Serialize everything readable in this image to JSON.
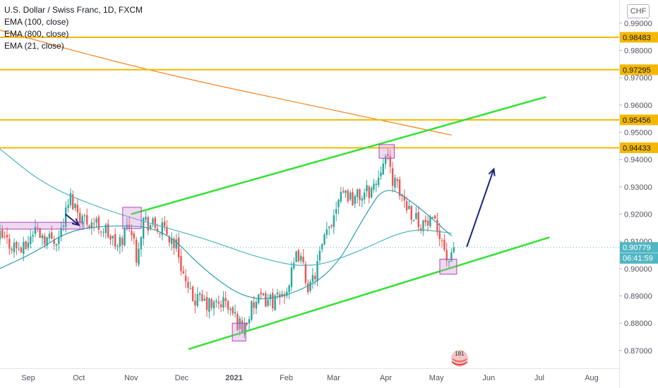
{
  "legend": {
    "title": "U.S. Dollar / Swiss Franc, 1D, FXCM",
    "ema100": "EMA (100, close)",
    "ema800": "EMA (800, close)",
    "ema21": "EMA (21, close)"
  },
  "currency_button": "CHF",
  "watermark_text": "181",
  "colors": {
    "up": "#26a69a",
    "down": "#ef5350",
    "ema100": "#4fb6c3",
    "ema21": "#2a9fb1",
    "ema800": "#f57f17",
    "level": "#f5b800",
    "channel": "#33e233",
    "arrow": "#1a237e",
    "box": "#ce93d8",
    "price_label": "#4fb6c3"
  },
  "chart_data": {
    "type": "candlestick",
    "symbol": "U.S. Dollar / Swiss Franc",
    "interval": "1D",
    "source": "FXCM",
    "ylim": [
      0.8635,
      0.9985
    ],
    "y_ticks": [
      "0.87000",
      "0.88000",
      "0.89000",
      "0.90000",
      "0.91000",
      "0.92000",
      "0.93000",
      "0.94000",
      "0.95000",
      "0.96000",
      "0.97000",
      "0.98000",
      "0.99000"
    ],
    "x_ticks": [
      {
        "label": "Sep",
        "date": "2020-09-01"
      },
      {
        "label": "Oct",
        "date": "2020-10-01"
      },
      {
        "label": "Nov",
        "date": "2020-11-01"
      },
      {
        "label": "Dec",
        "date": "2020-12-01"
      },
      {
        "label": "2021",
        "date": "2021-01-01"
      },
      {
        "label": "Feb",
        "date": "2021-02-01"
      },
      {
        "label": "Mar",
        "date": "2021-03-01"
      },
      {
        "label": "Apr",
        "date": "2021-04-01"
      },
      {
        "label": "May",
        "date": "2021-05-01"
      },
      {
        "label": "Jun",
        "date": "2021-06-01"
      },
      {
        "label": "Jul",
        "date": "2021-07-01"
      },
      {
        "label": "Aug",
        "date": "2021-08-01"
      }
    ],
    "horizontal_levels": [
      {
        "value": 0.98483,
        "label": "0.98483"
      },
      {
        "value": 0.97295,
        "label": "0.97295"
      },
      {
        "value": 0.95456,
        "label": "0.95456"
      },
      {
        "value": 0.94433,
        "label": "0.94433"
      }
    ],
    "last_price": {
      "value": 0.90779,
      "label": "0.90779",
      "countdown": "06:41:59"
    },
    "price_path": [
      [
        "2020-08-15",
        0.9115
      ],
      [
        "2020-08-22",
        0.909
      ],
      [
        "2020-08-29",
        0.9065
      ],
      [
        "2020-09-05",
        0.915
      ],
      [
        "2020-09-12",
        0.911
      ],
      [
        "2020-09-19",
        0.9115
      ],
      [
        "2020-09-26",
        0.926
      ],
      [
        "2020-10-03",
        0.9185
      ],
      [
        "2020-10-10",
        0.917
      ],
      [
        "2020-10-17",
        0.914
      ],
      [
        "2020-10-24",
        0.9075
      ],
      [
        "2020-10-31",
        0.9175
      ],
      [
        "2020-11-04",
        0.905
      ],
      [
        "2020-11-08",
        0.918
      ],
      [
        "2020-11-14",
        0.9155
      ],
      [
        "2020-11-21",
        0.9135
      ],
      [
        "2020-11-28",
        0.9085
      ],
      [
        "2020-12-05",
        0.89
      ],
      [
        "2020-12-12",
        0.888
      ],
      [
        "2020-12-19",
        0.886
      ],
      [
        "2020-12-26",
        0.888
      ],
      [
        "2021-01-06",
        0.878
      ],
      [
        "2021-01-13",
        0.887
      ],
      [
        "2021-01-20",
        0.889
      ],
      [
        "2021-01-27",
        0.888
      ],
      [
        "2021-02-03",
        0.895
      ],
      [
        "2021-02-08",
        0.906
      ],
      [
        "2021-02-15",
        0.892
      ],
      [
        "2021-02-22",
        0.907
      ],
      [
        "2021-03-01",
        0.92
      ],
      [
        "2021-03-05",
        0.93
      ],
      [
        "2021-03-12",
        0.926
      ],
      [
        "2021-03-19",
        0.927
      ],
      [
        "2021-03-26",
        0.931
      ],
      [
        "2021-03-31",
        0.9425
      ],
      [
        "2021-04-07",
        0.93
      ],
      [
        "2021-04-14",
        0.923
      ],
      [
        "2021-04-21",
        0.917
      ],
      [
        "2021-04-28",
        0.916
      ],
      [
        "2021-05-03",
        0.914
      ],
      [
        "2021-05-07",
        0.904
      ],
      [
        "2021-05-10",
        0.903
      ],
      [
        "2021-05-12",
        0.90779
      ]
    ],
    "ema_800": [
      [
        "2020-08-15",
        0.9875
      ],
      [
        "2020-10-15",
        0.977
      ],
      [
        "2020-12-15",
        0.968
      ],
      [
        "2021-02-15",
        0.96
      ],
      [
        "2021-04-01",
        0.954
      ],
      [
        "2021-05-10",
        0.949
      ]
    ],
    "ema_100": [
      [
        "2020-08-15",
        0.944
      ],
      [
        "2020-09-10",
        0.931
      ],
      [
        "2020-10-10",
        0.923
      ],
      [
        "2020-11-10",
        0.917
      ],
      [
        "2020-12-15",
        0.911
      ],
      [
        "2021-01-15",
        0.904
      ],
      [
        "2021-02-15",
        0.9
      ],
      [
        "2021-03-15",
        0.906
      ],
      [
        "2021-04-15",
        0.915
      ],
      [
        "2021-05-10",
        0.913
      ]
    ],
    "ema_21": [
      [
        "2020-08-15",
        0.9
      ],
      [
        "2020-09-05",
        0.906
      ],
      [
        "2020-09-25",
        0.914
      ],
      [
        "2020-10-20",
        0.916
      ],
      [
        "2020-11-20",
        0.915
      ],
      [
        "2020-12-15",
        0.899
      ],
      [
        "2021-01-10",
        0.888
      ],
      [
        "2021-02-05",
        0.8905
      ],
      [
        "2021-03-01",
        0.899
      ],
      [
        "2021-03-20",
        0.92
      ],
      [
        "2021-04-01",
        0.931
      ],
      [
        "2021-04-20",
        0.923
      ],
      [
        "2021-05-10",
        0.912
      ]
    ],
    "drawings": {
      "upper_channel": [
        [
          "2020-11-01",
          0.92
        ],
        [
          "2021-07-05",
          0.963
        ]
      ],
      "lower_channel": [
        [
          "2020-12-05",
          0.8705
        ],
        [
          "2021-07-07",
          0.9115
        ]
      ],
      "boxes": [
        {
          "x1": "2020-08-15",
          "x2": "2020-10-04",
          "y1": 0.9145,
          "y2": 0.917
        },
        {
          "x1": "2020-10-27",
          "x2": "2020-11-07",
          "y1": 0.9147,
          "y2": 0.9225
        },
        {
          "x1": "2020-12-31",
          "x2": "2021-01-08",
          "y1": 0.8735,
          "y2": 0.88
        },
        {
          "x1": "2021-03-28",
          "x2": "2021-04-06",
          "y1": 0.9405,
          "y2": 0.9455
        },
        {
          "x1": "2021-05-03",
          "x2": "2021-05-13",
          "y1": 0.898,
          "y2": 0.9035
        }
      ],
      "arrows": [
        {
          "from": [
            "2021-05-19",
            0.908
          ],
          "to": [
            "2021-06-04",
            0.9365
          ]
        },
        {
          "from": [
            "2020-09-23",
            0.92
          ],
          "to": [
            "2020-10-01",
            0.916
          ]
        }
      ]
    }
  }
}
